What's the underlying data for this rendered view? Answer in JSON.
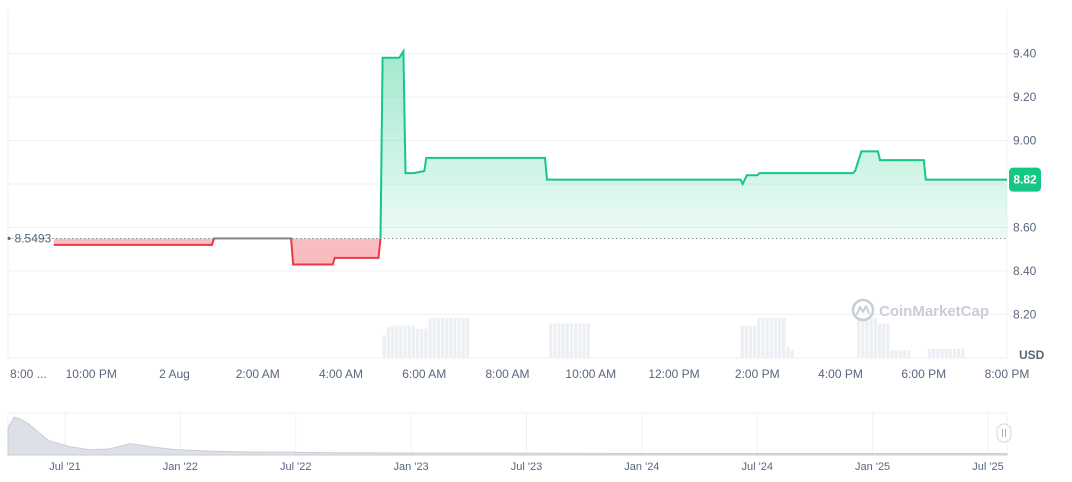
{
  "chart_data": {
    "type": "line",
    "title": "",
    "xlabel": "",
    "ylabel": "",
    "unit_label": "USD",
    "ylim": [
      8.0,
      9.6
    ],
    "y_ticks": [
      "9.40",
      "9.20",
      "9.00",
      "8.80",
      "8.60",
      "8.40",
      "8.20"
    ],
    "y_tick_values": [
      9.4,
      9.2,
      9.0,
      8.8,
      8.6,
      8.4,
      8.2
    ],
    "x_ticks": [
      "8:00 ...",
      "10:00 PM",
      "2 Aug",
      "2:00 AM",
      "4:00 AM",
      "6:00 AM",
      "8:00 AM",
      "10:00 AM",
      "12:00 PM",
      "2:00 PM",
      "4:00 PM",
      "6:00 PM",
      "8:00 PM"
    ],
    "x_range_hours": [
      0,
      24
    ],
    "baseline": {
      "value": 8.5493,
      "label": "8.5493"
    },
    "current_price": {
      "value": 8.82,
      "label": "8.82"
    },
    "series": [
      {
        "x": [
          1.1,
          4.9,
          4.95,
          6.8,
          6.85,
          7.8,
          7.85,
          8.9,
          8.95,
          9.0,
          9.4,
          9.5,
          9.55,
          9.7,
          9.75,
          10.0,
          10.05,
          12.9,
          12.95,
          17.6,
          17.65,
          17.75,
          17.8,
          18.0,
          18.05,
          20.3,
          20.35,
          20.5,
          20.55,
          20.9,
          20.95,
          22.0,
          22.05,
          24.0
        ],
        "values": [
          8.52,
          8.52,
          8.55,
          8.55,
          8.43,
          8.43,
          8.46,
          8.46,
          8.55,
          9.38,
          9.38,
          9.41,
          8.85,
          8.85,
          8.85,
          8.86,
          8.92,
          8.92,
          8.82,
          8.82,
          8.8,
          8.84,
          8.84,
          8.84,
          8.85,
          8.85,
          8.86,
          8.95,
          8.95,
          8.95,
          8.91,
          8.91,
          8.82,
          8.82
        ]
      }
    ],
    "colors": {
      "up": "#16c784",
      "down": "#ea3943"
    },
    "volume_bars": [
      {
        "x": 9.0,
        "h": 0.3
      },
      {
        "x": 9.1,
        "h": 0.4
      },
      {
        "x": 9.2,
        "h": 0.42
      },
      {
        "x": 9.3,
        "h": 0.42
      },
      {
        "x": 9.4,
        "h": 0.42
      },
      {
        "x": 9.5,
        "h": 0.42
      },
      {
        "x": 9.6,
        "h": 0.42
      },
      {
        "x": 9.7,
        "h": 0.42
      },
      {
        "x": 9.8,
        "h": 0.38
      },
      {
        "x": 9.9,
        "h": 0.38
      },
      {
        "x": 10.0,
        "h": 0.38
      },
      {
        "x": 10.1,
        "h": 0.52
      },
      {
        "x": 10.2,
        "h": 0.52
      },
      {
        "x": 10.3,
        "h": 0.52
      },
      {
        "x": 10.4,
        "h": 0.52
      },
      {
        "x": 10.5,
        "h": 0.52
      },
      {
        "x": 10.6,
        "h": 0.52
      },
      {
        "x": 10.7,
        "h": 0.52
      },
      {
        "x": 10.8,
        "h": 0.52
      },
      {
        "x": 10.9,
        "h": 0.52
      },
      {
        "x": 11.0,
        "h": 0.52
      },
      {
        "x": 13.0,
        "h": 0.45
      },
      {
        "x": 13.1,
        "h": 0.45
      },
      {
        "x": 13.2,
        "h": 0.45
      },
      {
        "x": 13.3,
        "h": 0.45
      },
      {
        "x": 13.4,
        "h": 0.45
      },
      {
        "x": 13.5,
        "h": 0.45
      },
      {
        "x": 13.6,
        "h": 0.45
      },
      {
        "x": 13.7,
        "h": 0.45
      },
      {
        "x": 13.8,
        "h": 0.45
      },
      {
        "x": 13.9,
        "h": 0.45
      },
      {
        "x": 17.6,
        "h": 0.42
      },
      {
        "x": 17.7,
        "h": 0.42
      },
      {
        "x": 17.8,
        "h": 0.42
      },
      {
        "x": 17.9,
        "h": 0.42
      },
      {
        "x": 18.0,
        "h": 0.52
      },
      {
        "x": 18.1,
        "h": 0.52
      },
      {
        "x": 18.2,
        "h": 0.52
      },
      {
        "x": 18.3,
        "h": 0.52
      },
      {
        "x": 18.4,
        "h": 0.52
      },
      {
        "x": 18.5,
        "h": 0.52
      },
      {
        "x": 18.6,
        "h": 0.52
      },
      {
        "x": 18.7,
        "h": 0.15
      },
      {
        "x": 18.8,
        "h": 0.1
      },
      {
        "x": 20.4,
        "h": 0.52
      },
      {
        "x": 20.5,
        "h": 0.52
      },
      {
        "x": 20.6,
        "h": 0.52
      },
      {
        "x": 20.7,
        "h": 0.52
      },
      {
        "x": 20.8,
        "h": 0.52
      },
      {
        "x": 20.9,
        "h": 0.45
      },
      {
        "x": 21.0,
        "h": 0.45
      },
      {
        "x": 21.1,
        "h": 0.45
      },
      {
        "x": 21.2,
        "h": 0.1
      },
      {
        "x": 21.3,
        "h": 0.1
      },
      {
        "x": 21.4,
        "h": 0.1
      },
      {
        "x": 21.5,
        "h": 0.1
      },
      {
        "x": 21.6,
        "h": 0.1
      },
      {
        "x": 22.1,
        "h": 0.12
      },
      {
        "x": 22.2,
        "h": 0.12
      },
      {
        "x": 22.3,
        "h": 0.12
      },
      {
        "x": 22.4,
        "h": 0.12
      },
      {
        "x": 22.5,
        "h": 0.12
      },
      {
        "x": 22.6,
        "h": 0.12
      },
      {
        "x": 22.7,
        "h": 0.12
      },
      {
        "x": 22.8,
        "h": 0.12
      },
      {
        "x": 22.9,
        "h": 0.12
      }
    ],
    "navigator": {
      "x_ticks": [
        "Jul '21",
        "Jan '22",
        "Jul '22",
        "Jan '23",
        "Jul '23",
        "Jan '24",
        "Jul '24",
        "Jan '25",
        "Jul '25"
      ],
      "x": [
        0,
        0.3,
        0.6,
        1.0,
        1.5,
        2.0,
        3.0,
        4.0,
        5.0,
        6.0,
        7.0,
        8.0,
        9.0,
        10.0,
        12.0,
        14.0,
        16.0,
        20.0,
        24.0,
        30.0,
        36.0,
        42.0,
        48.0,
        49.0
      ],
      "values": [
        0.72,
        1.0,
        0.95,
        0.82,
        0.6,
        0.38,
        0.22,
        0.14,
        0.16,
        0.3,
        0.22,
        0.15,
        0.12,
        0.1,
        0.08,
        0.07,
        0.06,
        0.05,
        0.05,
        0.04,
        0.04,
        0.04,
        0.04,
        0.04
      ],
      "xlim": [
        0,
        49
      ]
    },
    "watermark": "CoinMarketCap"
  }
}
